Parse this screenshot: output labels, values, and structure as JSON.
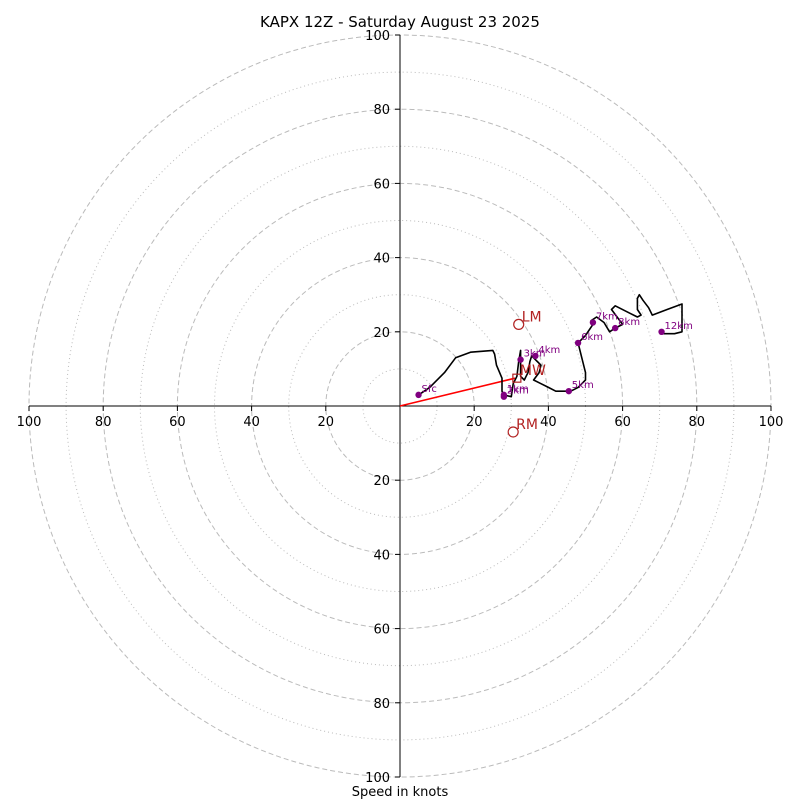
{
  "chart_data": {
    "type": "hodograph",
    "title": "KAPX 12Z - Saturday August 23 2025",
    "xlabel": "Speed in knots",
    "ring_max": 100,
    "major_rings": [
      20,
      40,
      60,
      80,
      100
    ],
    "minor_rings": [
      10,
      30,
      50,
      70,
      90
    ],
    "ticks": {
      "x_left": [
        "100",
        "80",
        "60",
        "40",
        "20"
      ],
      "x_right": [
        "20",
        "40",
        "60",
        "80",
        "100"
      ],
      "y_up": [
        "20",
        "40",
        "60",
        "80",
        "100"
      ],
      "y_down": [
        "20",
        "40",
        "60",
        "80",
        "100"
      ]
    },
    "trace": [
      [
        5,
        3
      ],
      [
        8,
        5
      ],
      [
        12,
        9
      ],
      [
        15,
        13
      ],
      [
        19,
        14.5
      ],
      [
        25,
        15
      ],
      [
        25.5,
        14
      ],
      [
        26,
        11
      ],
      [
        27.5,
        7.5
      ],
      [
        27.5,
        4
      ],
      [
        28,
        3
      ],
      [
        30,
        2.5
      ],
      [
        30.5,
        6
      ],
      [
        31.5,
        8
      ],
      [
        32,
        12
      ],
      [
        32.5,
        15
      ],
      [
        32.5,
        11
      ],
      [
        32.5,
        8
      ],
      [
        33.5,
        7
      ],
      [
        34,
        8
      ],
      [
        34.5,
        9
      ],
      [
        35,
        12
      ],
      [
        35.5,
        13.5
      ],
      [
        37,
        12
      ],
      [
        38,
        11
      ],
      [
        37.5,
        9
      ],
      [
        36,
        7
      ],
      [
        38,
        6
      ],
      [
        40,
        5
      ],
      [
        42,
        4
      ],
      [
        44,
        4
      ],
      [
        46,
        4
      ],
      [
        48,
        5
      ],
      [
        50,
        7
      ],
      [
        50,
        9
      ],
      [
        49,
        13
      ],
      [
        48,
        17
      ],
      [
        50,
        19
      ],
      [
        52,
        22
      ],
      [
        51.5,
        23
      ],
      [
        53,
        24
      ],
      [
        55,
        22.5
      ],
      [
        56.5,
        20
      ],
      [
        58,
        21
      ],
      [
        60,
        22
      ],
      [
        57,
        26
      ],
      [
        58,
        27
      ],
      [
        62,
        25
      ],
      [
        64,
        24
      ],
      [
        65,
        24.5
      ],
      [
        64,
        26
      ],
      [
        64,
        29
      ],
      [
        64.5,
        30
      ],
      [
        65.5,
        28.5
      ],
      [
        67,
        26.5
      ],
      [
        68,
        24.5
      ],
      [
        72,
        26
      ],
      [
        76,
        27.5
      ],
      [
        76,
        20
      ],
      [
        74,
        19.5
      ],
      [
        71,
        19.5
      ]
    ],
    "height_markers": [
      {
        "label": "Sfc",
        "u": 5,
        "v": 3
      },
      {
        "label": "1km",
        "u": 28,
        "v": 3
      },
      {
        "label": "2km",
        "u": 28,
        "v": 2.5
      },
      {
        "label": "3km",
        "u": 32.5,
        "v": 12.5
      },
      {
        "label": "4km",
        "u": 36.5,
        "v": 13.5
      },
      {
        "label": "5km",
        "u": 45.5,
        "v": 4
      },
      {
        "label": "6km",
        "u": 48,
        "v": 17
      },
      {
        "label": "7km",
        "u": 52,
        "v": 22.5
      },
      {
        "label": "8km",
        "u": 58,
        "v": 21
      },
      {
        "label": "12km",
        "u": 70.5,
        "v": 20
      }
    ],
    "storm_motion": [
      {
        "label": "LM",
        "u": 32,
        "v": 22
      },
      {
        "label": "MW",
        "u": 31.5,
        "v": 7.5
      },
      {
        "label": "RM",
        "u": 30.5,
        "v": -7
      }
    ],
    "shear_vector": {
      "from": [
        0,
        0
      ],
      "to": [
        31,
        7.5
      ]
    },
    "colors": {
      "trace": "#000000",
      "markers": "#800080",
      "motion": "#b22222",
      "shear": "#ff0000",
      "rings": "#bbbbbb",
      "axes": "#000000"
    }
  }
}
